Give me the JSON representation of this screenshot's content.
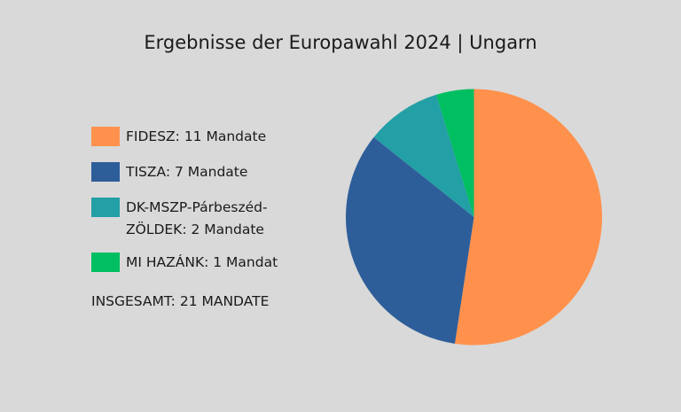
{
  "chart_data": {
    "type": "pie",
    "title": "Ergebnisse der Europawahl 2024 | Ungarn",
    "slices": [
      {
        "label": "FIDESZ: 11 Mandate",
        "value": 11,
        "color": "#FF914D"
      },
      {
        "label": "TISZA: 7 Mandate",
        "value": 7,
        "color": "#2E5E99"
      },
      {
        "label": "DK-MSZP-Párbeszéd-ZÖLDEK: 2 Mandate",
        "label_lines": [
          "DK-MSZP-Párbeszéd-",
          "ZÖLDEK: 2 Mandate"
        ],
        "value": 2,
        "color": "#239FA6"
      },
      {
        "label": "MI HAZÁNK: 1 Mandat",
        "value": 1,
        "color": "#00BF63"
      }
    ],
    "total_label": "INSGESAMT: 21 MANDATE",
    "start": "top",
    "direction": "clockwise",
    "legend_position": "left"
  }
}
